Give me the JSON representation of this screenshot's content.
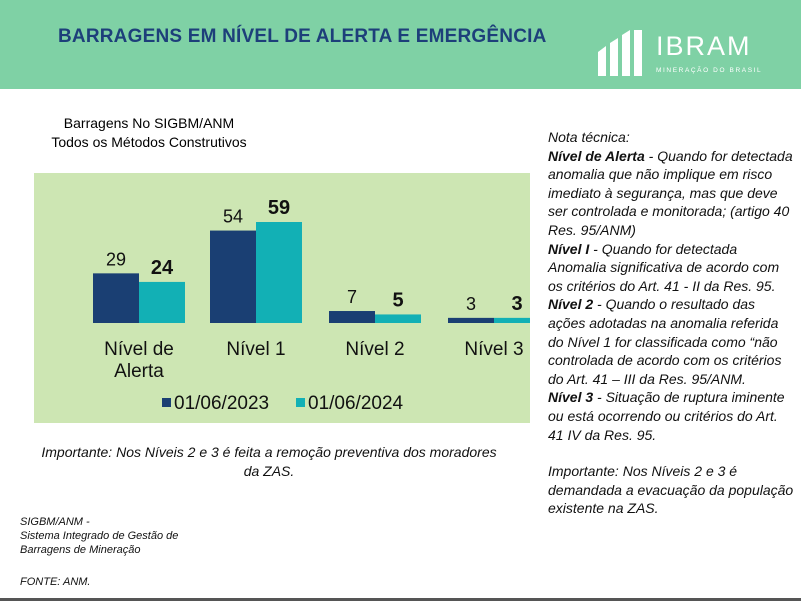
{
  "header": {
    "title": "BARRAGENS EM NÍVEL DE ALERTA E EMERGÊNCIA",
    "logo_name": "IBRAM",
    "logo_tagline": "MINERAÇÃO DO BRASIL"
  },
  "chart_title": [
    "Barragens No SIGBM/ANM",
    "Todos os Métodos Construtivos"
  ],
  "chart_data": {
    "type": "bar",
    "title": "Barragens No SIGBM/ANM Todos os Métodos Construtivos",
    "categories": [
      "Nível de Alerta",
      "Nível 1",
      "Nível 2",
      "Nível 3"
    ],
    "series": [
      {
        "name": "01/06/2023",
        "values": [
          29,
          54,
          7,
          3
        ],
        "color": "#1a3f73"
      },
      {
        "name": "01/06/2024",
        "values": [
          24,
          59,
          5,
          3
        ],
        "color": "#12b0b5"
      }
    ],
    "ylim": [
      0,
      65
    ],
    "grid": false,
    "legend": "bottom",
    "data_labels": true
  },
  "important_left": "Importante: Nos Níveis 2 e 3 é feita a remoção preventiva dos moradores da ZAS.",
  "source": {
    "line1": "SIGBM/ANM -",
    "line2": "Sistema Integrado de Gestão de",
    "line3": "Barragens de Mineração",
    "fonte": "FONTE: ANM."
  },
  "note": {
    "heading": "Nota técnica:",
    "items": [
      {
        "term": "Nível de Alerta",
        "text": " - Quando for detectada anomalia que não implique em risco imediato à segurança, mas que deve ser controlada e monitorada; (artigo 40 Res. 95/ANM)"
      },
      {
        "term": "Nível I",
        "text": " - Quando for detectada Anomalia significativa de acordo com os critérios do Art. 41 - II da Res. 95."
      },
      {
        "term": "Nível 2",
        "text": "  - Quando o resultado das ações adotadas na anomalia referida do Nível 1 for classificada como “não controlada de acordo com os critérios do Art. 41 – III da Res. 95/ANM."
      },
      {
        "term": "Nível 3",
        "text": " - Situação de ruptura iminente ou está ocorrendo ou critérios do Art. 41 IV da Res. 95."
      }
    ],
    "important": "Importante: Nos Níveis 2 e 3 é demandada a evacuação da população existente na ZAS."
  }
}
